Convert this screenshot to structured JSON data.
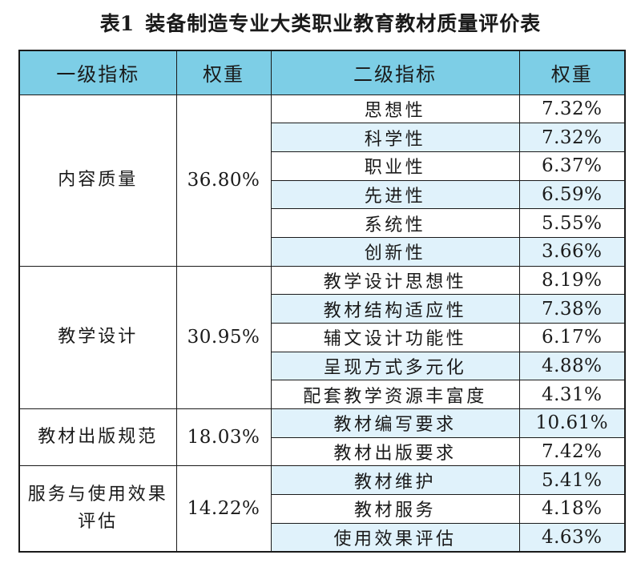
{
  "caption": {
    "label": "表1",
    "title": "装备制造专业大类职业教育教材质量评价表"
  },
  "headers": [
    "一级指标",
    "权重",
    "二级指标",
    "权重"
  ],
  "groups": [
    {
      "name_lines": [
        "内容质量"
      ],
      "weight": "36.80%",
      "items": [
        {
          "name": "思想性",
          "weight": "7.32%"
        },
        {
          "name": "科学性",
          "weight": "7.32%"
        },
        {
          "name": "职业性",
          "weight": "6.37%"
        },
        {
          "name": "先进性",
          "weight": "6.59%"
        },
        {
          "name": "系统性",
          "weight": "5.55%"
        },
        {
          "name": "创新性",
          "weight": "3.66%"
        }
      ]
    },
    {
      "name_lines": [
        "教学设计"
      ],
      "weight": "30.95%",
      "items": [
        {
          "name": "教学设计思想性",
          "weight": "8.19%"
        },
        {
          "name": "教材结构适应性",
          "weight": "7.38%"
        },
        {
          "name": "辅文设计功能性",
          "weight": "6.17%"
        },
        {
          "name": "呈现方式多元化",
          "weight": "4.88%"
        },
        {
          "name": "配套教学资源丰富度",
          "weight": "4.31%"
        }
      ]
    },
    {
      "name_lines": [
        "教材出版规范"
      ],
      "weight": "18.03%",
      "items": [
        {
          "name": "教材编写要求",
          "weight": "10.61%"
        },
        {
          "name": "教材出版要求",
          "weight": "7.42%"
        }
      ]
    },
    {
      "name_lines": [
        "服务与使用效果",
        "评估"
      ],
      "weight": "14.22%",
      "items": [
        {
          "name": "教材维护",
          "weight": "5.41%"
        },
        {
          "name": "教材服务",
          "weight": "4.18%"
        },
        {
          "name": "使用效果评估",
          "weight": "4.63%"
        }
      ]
    }
  ],
  "colors": {
    "header_background": "#7dcee6",
    "stripe_background": "#e0f2fb",
    "border": "#1a1a1a",
    "text": "#1a1a1a"
  }
}
